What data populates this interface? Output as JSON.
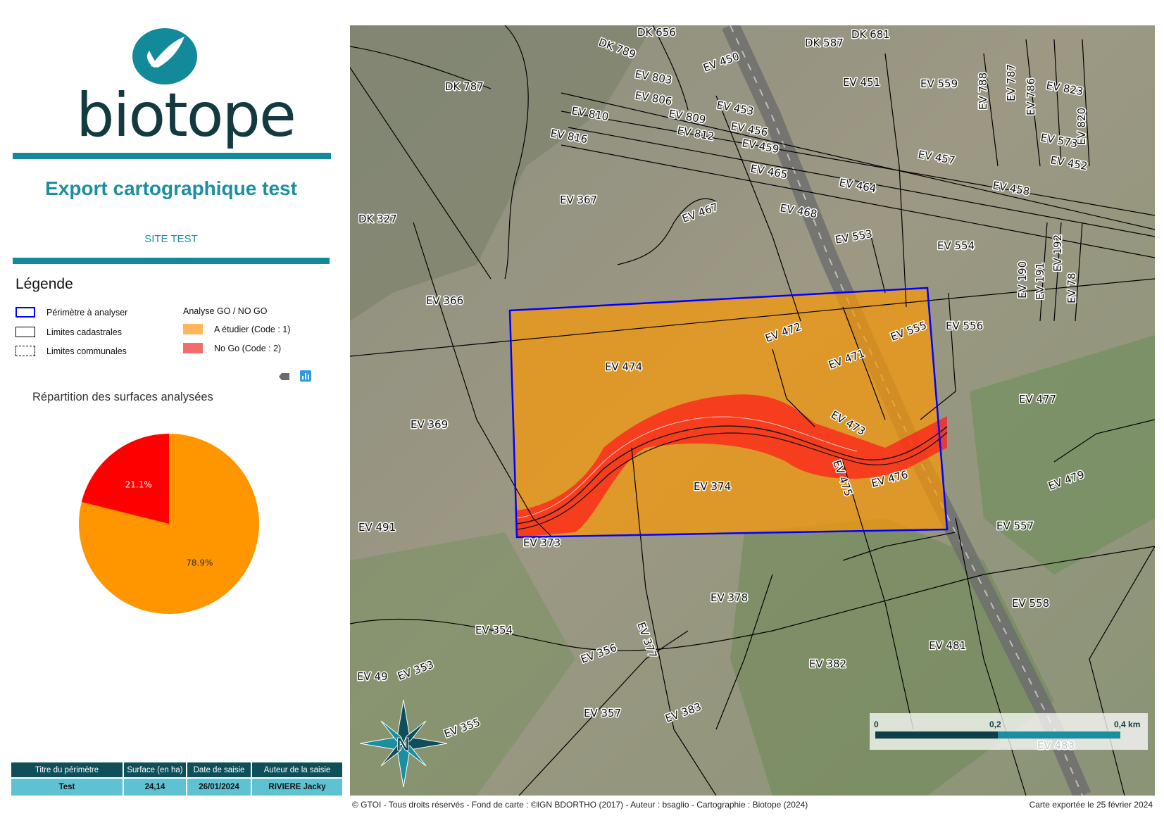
{
  "logo": {
    "wordmark": "biotope"
  },
  "header": {
    "title": "Export cartographique test",
    "site": "SITE TEST"
  },
  "legend": {
    "title": "Légende",
    "items": [
      {
        "label": "Périmètre à analyser",
        "color": "#0000ff"
      },
      {
        "label": "Limites cadastrales",
        "color": "#000000"
      },
      {
        "label": "Limites communales",
        "color": "#000000"
      }
    ],
    "analysis": {
      "title": "Analyse GO / NO GO",
      "items": [
        {
          "label": "A étudier (Code : 1)",
          "color": "#ffb55a"
        },
        {
          "label": "No Go (Code : 2)",
          "color": "#f36b6b"
        }
      ]
    }
  },
  "chart_data": {
    "type": "pie",
    "title": "Répartition des surfaces analysées",
    "labels": [
      "78.9%",
      "21.1%"
    ],
    "values": [
      78.9,
      21.1
    ],
    "colors": [
      "#ff9600",
      "#ff0000"
    ]
  },
  "table": {
    "headers": [
      "Titre du périmètre",
      "Surface (en ha)",
      "Date de saisie",
      "Auteur de la saisie"
    ],
    "row": [
      "Test",
      "24,14",
      "26/01/2024",
      "RIVIERE Jacky"
    ]
  },
  "map": {
    "scalebar": {
      "ticks": [
        "0",
        "0,2",
        "0,4 km"
      ]
    },
    "north_arrow_letter": "N",
    "parcels": [
      "DK 656",
      "DK 789",
      "DK 587",
      "DK 681",
      "EV 803",
      "EV 450",
      "DK 787",
      "EV 451",
      "EV 559",
      "EV 788",
      "EV 787",
      "EV 786",
      "EV 823",
      "EV 806",
      "EV 453",
      "EV 810",
      "EV 809",
      "EV 456",
      "EV 812",
      "EV 820",
      "EV 816",
      "EV 459",
      "EV 573",
      "EV 457",
      "EV 452",
      "EV 465",
      "EV 464",
      "EV 458",
      "EV 367",
      "EV 467",
      "EV 468",
      "DK 327",
      "EV 553",
      "EV 554",
      "EV 190",
      "EV 191",
      "EV 192",
      "EV 78",
      "EV 366",
      "EV 472",
      "EV 555",
      "EV 556",
      "EV 471",
      "EV 474",
      "EV 477",
      "EV 473",
      "EV 369",
      "EV 475",
      "EV 476",
      "EV 479",
      "EV 374",
      "EV 491",
      "EV 557",
      "EV 373",
      "EV 378",
      "EV 558",
      "EV 377",
      "EV 354",
      "EV 481",
      "EV 356",
      "EV 382",
      "EV 49",
      "EV 353",
      "EV 357",
      "EV 383",
      "EV 355",
      "EV 483"
    ]
  },
  "footer": {
    "credit": "© GTOI - Tous droits réservés - Fond de carte : ©IGN BDORTHO (2017) - Auteur : bsaglio - Cartographie : Biotope (2024)",
    "export_date": "Carte exportée le 25 février 2024"
  }
}
